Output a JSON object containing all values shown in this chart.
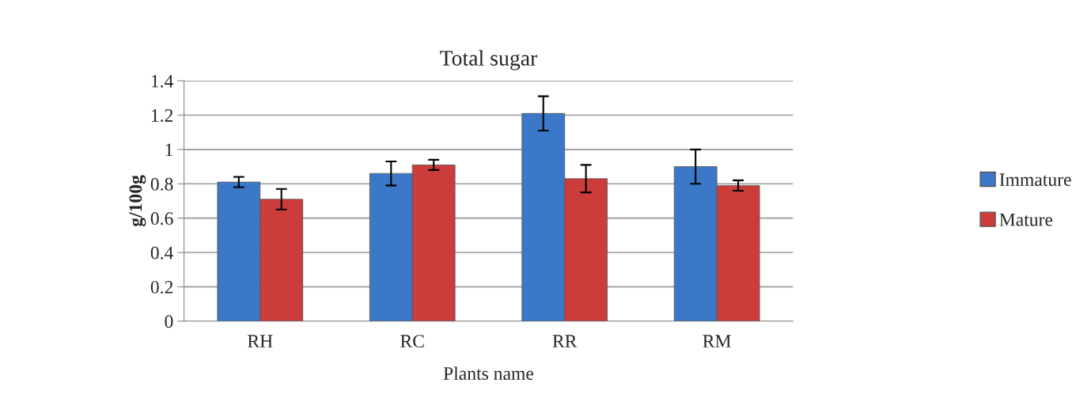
{
  "chart_data": {
    "type": "bar",
    "title": "Total sugar",
    "xlabel": "Plants name",
    "ylabel": "g/100g",
    "categories": [
      "RH",
      "RC",
      "RR",
      "RM"
    ],
    "series": [
      {
        "name": "Immature",
        "color": "#3b78c8",
        "values": [
          0.81,
          0.86,
          1.21,
          0.9
        ],
        "errors": [
          0.03,
          0.07,
          0.1,
          0.1
        ]
      },
      {
        "name": "Mature",
        "color": "#cc3c3a",
        "values": [
          0.71,
          0.91,
          0.83,
          0.79
        ],
        "errors": [
          0.06,
          0.03,
          0.08,
          0.03
        ]
      }
    ],
    "ylim": [
      0,
      1.4
    ],
    "yticks": [
      0,
      0.2,
      0.4,
      0.6,
      0.8,
      1,
      1.2,
      1.4
    ],
    "grid": "y",
    "legend": "right"
  }
}
